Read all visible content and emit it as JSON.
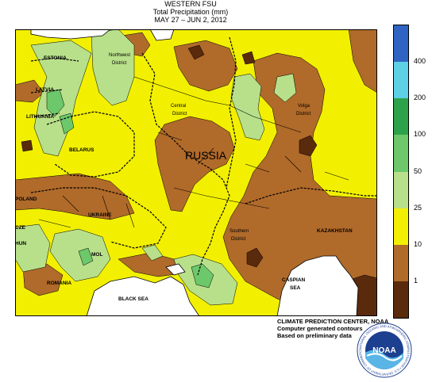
{
  "title": {
    "line1": "WESTERN FSU",
    "line2": "Total Precipitation (mm)",
    "line3": "MAY 27  –  JUN  2, 2012"
  },
  "legend": {
    "bins": [
      {
        "label": "",
        "color": "#5a2a0c"
      },
      {
        "label": "1",
        "color": "#b06a2a"
      },
      {
        "label": "10",
        "color": "#f2f000"
      },
      {
        "label": "25",
        "color": "#b8e08a"
      },
      {
        "label": "50",
        "color": "#6cc86a"
      },
      {
        "label": "100",
        "color": "#2ea24a"
      },
      {
        "label": "200",
        "color": "#5ed0e6"
      },
      {
        "label": "400",
        "color": "#2f64c2"
      }
    ]
  },
  "map_labels": {
    "estonia": "ESTONIA",
    "latvia": "LATVIA",
    "lithuania": "LITHUANIA",
    "belarus": "BELARUS",
    "poland": "POLAND",
    "czech": "CZE",
    "hungary": "HUN",
    "ukraine": "UKRAINE",
    "moldova": "MOL",
    "romania": "ROMANIA",
    "black_sea": "BLACK SEA",
    "russia": "RUSSIA",
    "nw_district_1": "Northwest",
    "nw_district_2": "District",
    "central_1": "Central",
    "central_2": "District",
    "volga_1": "Volga",
    "volga_2": "District",
    "southern_1": "Southern",
    "southern_2": "District",
    "kazakhstan": "KAZAKHSTAN",
    "caspian_1": "CASPIAN",
    "caspian_2": "SEA"
  },
  "credits": {
    "line1": "CLIMATE PREDICTION CENTER, NOAA",
    "line2": "Computer generated contours",
    "line3": "Based on preliminary data"
  },
  "logo": {
    "text": "NOAA",
    "ring_text": "NATIONAL OCEANIC AND ATMOSPHERIC ADMINISTRATION • U.S. DEPARTMENT OF COMMERCE •"
  }
}
